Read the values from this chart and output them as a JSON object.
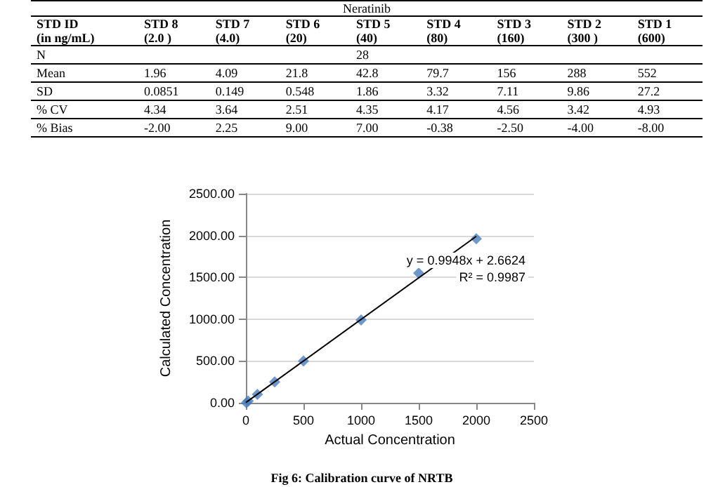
{
  "chart_data": [
    {
      "type": "other",
      "title": "Neratinib",
      "categories": [
        "STD ID\n(in ng/mL)",
        "STD 8\n(2.0 )",
        "STD 7\n(4.0)",
        "STD 6\n(20)",
        "STD 5\n(40)",
        "STD 4\n(80)",
        "STD 3\n(160)",
        "STD 2\n(300 )",
        "STD 1\n(600)"
      ],
      "cell_labels": [
        [
          "N",
          null,
          null,
          null,
          "28",
          null,
          null,
          null,
          null
        ],
        [
          "Mean",
          "1.96",
          "4.09",
          "21.8",
          "42.8",
          "79.7",
          "156",
          "288",
          "552"
        ],
        [
          "SD",
          "0.0851",
          "0.149",
          "0.548",
          "1.86",
          "3.32",
          "7.11",
          "9.86",
          "27.2"
        ],
        [
          "% CV",
          "4.34",
          "3.64",
          "2.51",
          "4.35",
          "4.17",
          "4.56",
          "3.42",
          "4.93"
        ],
        [
          "% Bias",
          "-2.00",
          "2.25",
          "9.00",
          "7.00",
          "-0.38",
          "-2.50",
          "-4.00",
          "-8.00"
        ]
      ]
    },
    {
      "type": "scatter",
      "xlabel": "Actual Concentration",
      "ylabel": "Calculated Concentration",
      "marker": "diamond",
      "grid": "y",
      "x": [
        5,
        20,
        100,
        250,
        500,
        1000,
        1500,
        2000
      ],
      "series": [
        {
          "color": "#4a7ebb",
          "values": [
            0,
            20,
            100,
            250,
            500,
            990,
            1550,
            1960
          ]
        },
        {
          "type": "line",
          "color": "#000000",
          "x": [
            0,
            2000
          ],
          "values": [
            3,
            1990
          ],
          "marker": "none"
        }
      ],
      "xlim": [
        0,
        2500
      ],
      "xticks": [
        0,
        500,
        1000,
        1500,
        2000,
        2500
      ],
      "ylim": [
        0,
        2500
      ],
      "yticks": [
        {
          "value": 0,
          "label": "0.00"
        },
        {
          "value": 500,
          "label": "500.00"
        },
        {
          "value": 1000,
          "label": "1000.00"
        },
        {
          "value": 1500,
          "label": "1500.00"
        },
        {
          "value": 2000,
          "label": "2000.00"
        },
        {
          "value": 2500,
          "label": "2500.00"
        }
      ],
      "annotations": [
        "y = 0.9948x + 2.6624",
        "R² = 0.9987",
        "Fig 6: Calibration curve of NRTB"
      ]
    }
  ]
}
